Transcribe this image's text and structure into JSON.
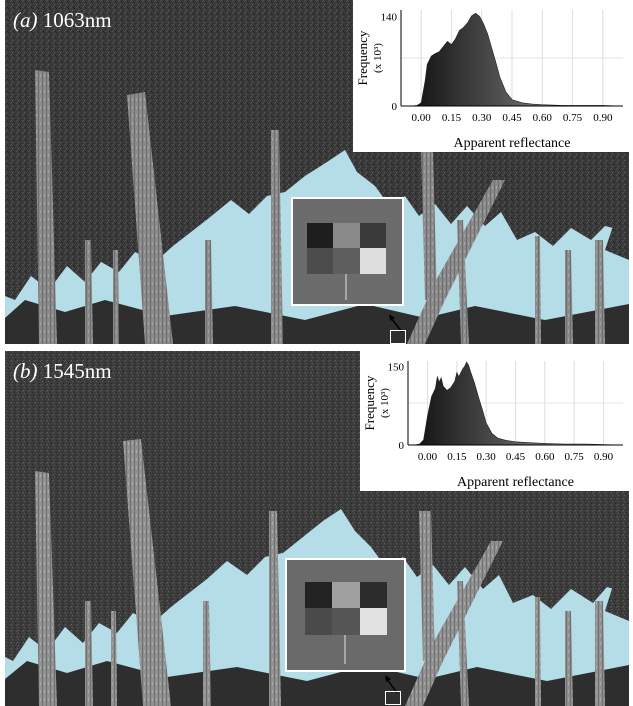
{
  "panels": [
    {
      "id": "a",
      "letter": "(a)",
      "wavelength": "1063nm",
      "colors": {
        "sky": "#b4dde8",
        "canopy": "#3e3e3e",
        "trunk": "#8f8f8f"
      },
      "chart_data": {
        "type": "area",
        "title": "",
        "xlabel": "Apparent reflectance",
        "ylabel": "Frequency",
        "ylabel_units": "(x 10³)",
        "xticks": [
          "0.00",
          "0.15",
          "0.30",
          "0.45",
          "0.60",
          "0.75",
          "0.90"
        ],
        "yticks": [
          "0",
          "140"
        ],
        "xlim": [
          -0.1,
          1.0
        ],
        "ylim": [
          0,
          150
        ],
        "grid": true,
        "x": [
          -0.05,
          -0.02,
          0.0,
          0.02,
          0.03,
          0.05,
          0.07,
          0.09,
          0.11,
          0.13,
          0.15,
          0.17,
          0.19,
          0.21,
          0.23,
          0.25,
          0.27,
          0.29,
          0.31,
          0.33,
          0.35,
          0.37,
          0.39,
          0.42,
          0.45,
          0.5,
          0.55,
          0.6,
          0.7,
          0.8,
          0.9,
          1.0
        ],
        "y": [
          0,
          1,
          5,
          40,
          65,
          78,
          82,
          85,
          93,
          101,
          96,
          105,
          118,
          123,
          130,
          141,
          145,
          140,
          128,
          112,
          90,
          68,
          45,
          22,
          10,
          5,
          3,
          2,
          1,
          1,
          1,
          0
        ]
      }
    },
    {
      "id": "b",
      "letter": "(b)",
      "wavelength": "1545nm",
      "colors": {
        "sky": "#b4dde8",
        "canopy": "#3e3e3e",
        "trunk": "#8f8f8f"
      },
      "chart_data": {
        "type": "area",
        "title": "",
        "xlabel": "Apparent reflectance",
        "ylabel": "Frequency",
        "ylabel_units": "(x 10³)",
        "xticks": [
          "0.00",
          "0.15",
          "0.30",
          "0.45",
          "0.60",
          "0.75",
          "0.90"
        ],
        "yticks": [
          "0",
          "150"
        ],
        "xlim": [
          -0.1,
          1.0
        ],
        "ylim": [
          0,
          160
        ],
        "grid": true,
        "x": [
          -0.07,
          -0.04,
          -0.02,
          0.0,
          0.02,
          0.04,
          0.05,
          0.06,
          0.07,
          0.08,
          0.1,
          0.12,
          0.14,
          0.15,
          0.16,
          0.18,
          0.19,
          0.2,
          0.21,
          0.22,
          0.24,
          0.26,
          0.28,
          0.3,
          0.33,
          0.36,
          0.4,
          0.45,
          0.5,
          0.6,
          0.7,
          0.8,
          0.9,
          1.0
        ],
        "y": [
          0,
          2,
          10,
          55,
          92,
          108,
          130,
          120,
          128,
          112,
          104,
          110,
          122,
          138,
          130,
          145,
          150,
          158,
          152,
          140,
          118,
          92,
          68,
          42,
          22,
          13,
          9,
          6,
          5,
          3,
          2,
          2,
          1,
          0
        ]
      }
    }
  ]
}
